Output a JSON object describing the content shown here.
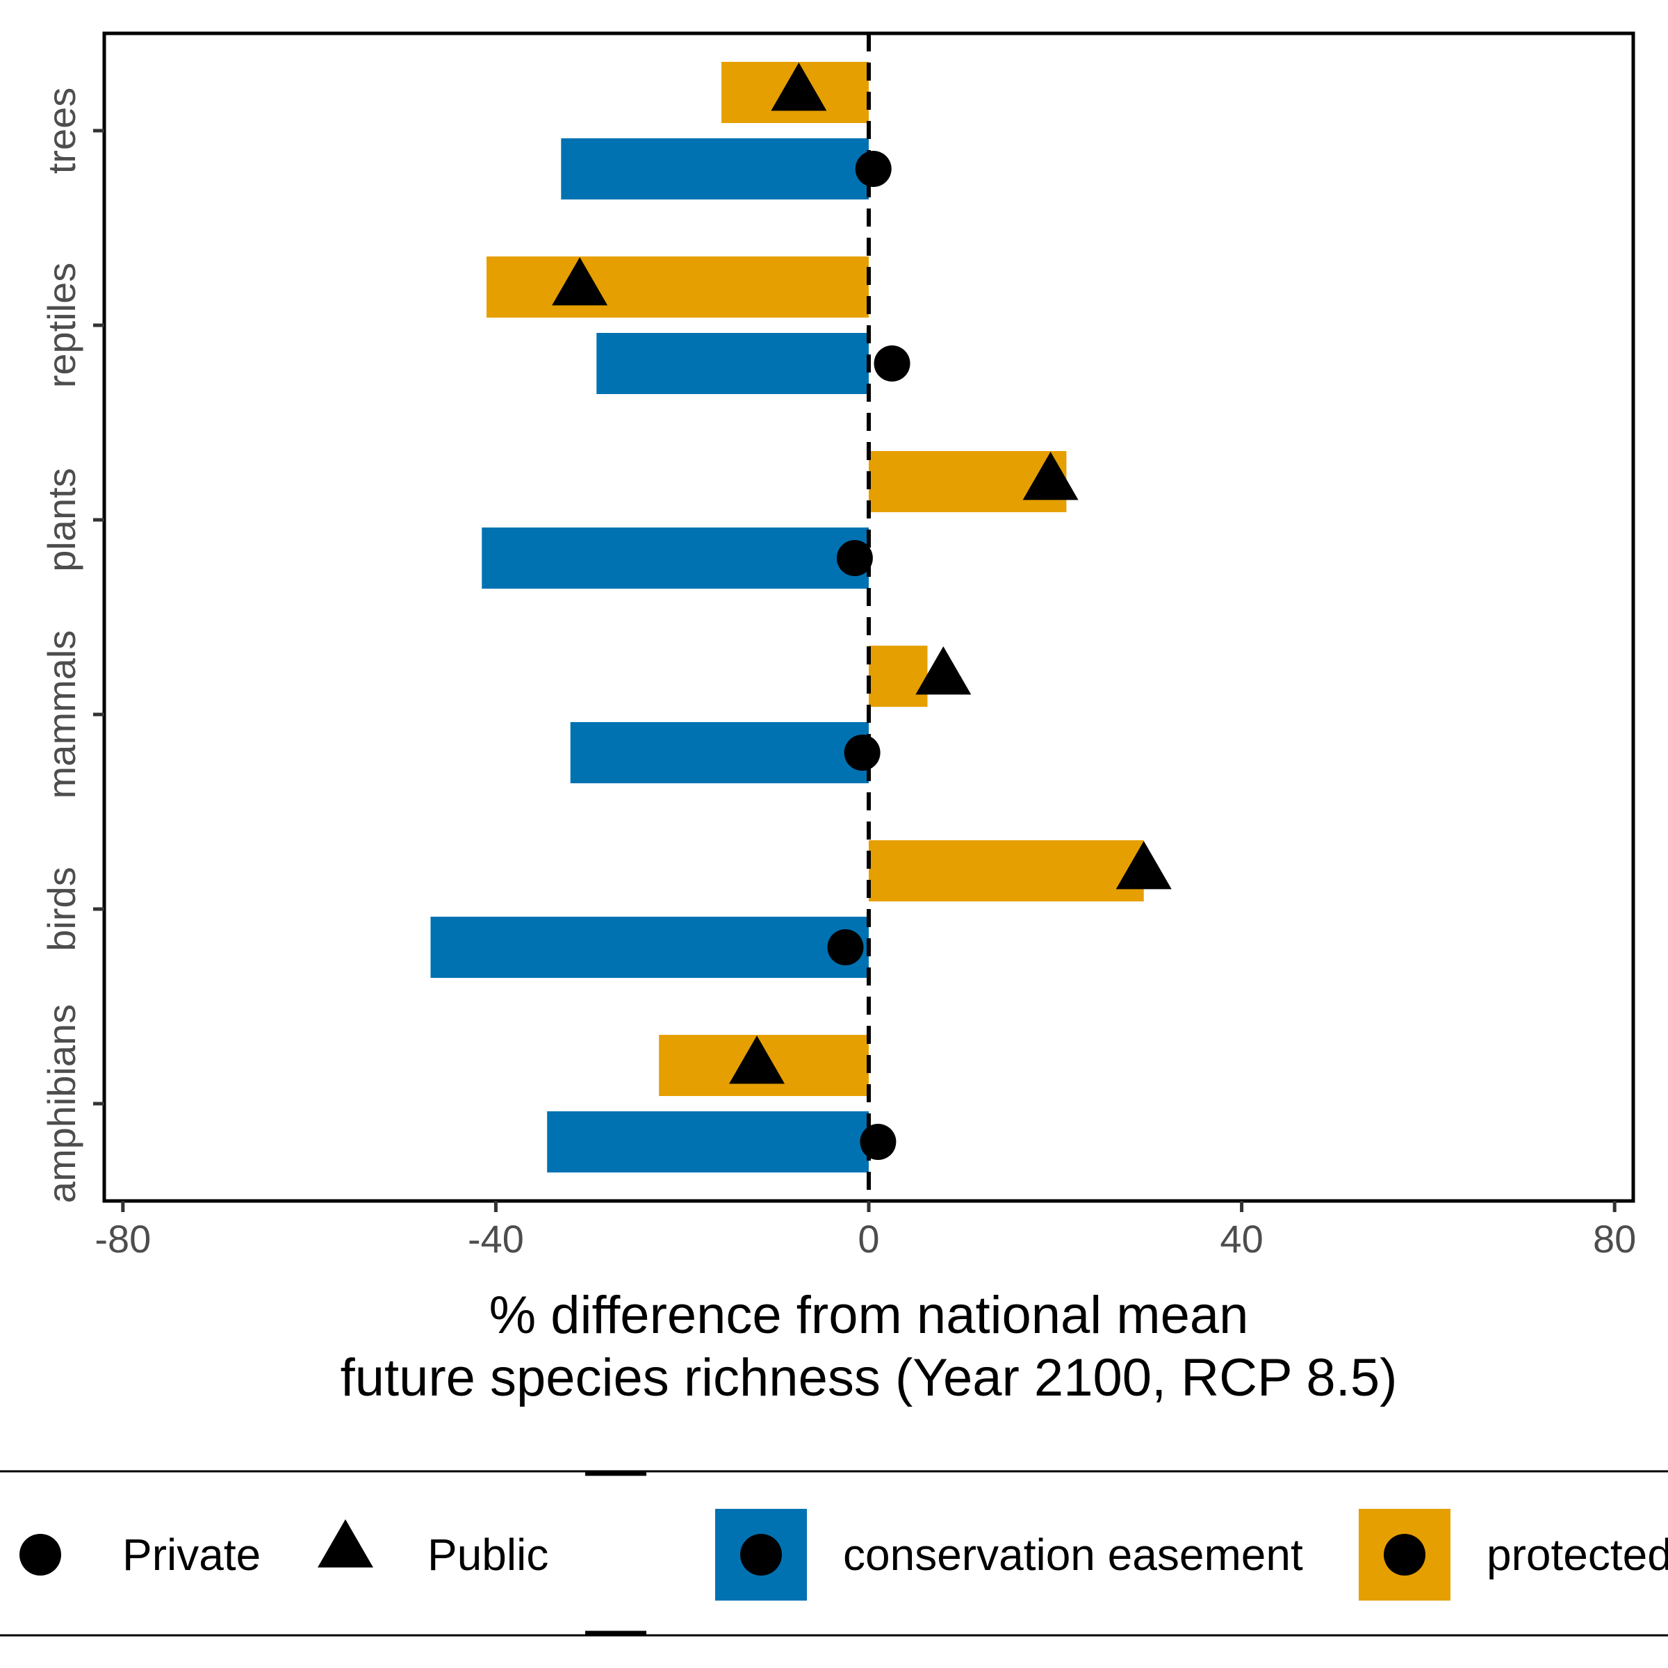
{
  "chart_data": {
    "type": "bar",
    "orientation": "horizontal",
    "categories": [
      "amphibians",
      "birds",
      "mammals",
      "plants",
      "reptiles",
      "trees"
    ],
    "series": [
      {
        "name": "conservation easement",
        "kind": "bar",
        "color": "#0072B2",
        "values": [
          -34.5,
          -47.0,
          -32.0,
          -41.5,
          -29.2,
          -33.0
        ]
      },
      {
        "name": "protected",
        "kind": "bar",
        "color": "#E69F00",
        "values": [
          -22.5,
          29.5,
          6.3,
          21.2,
          -41.0,
          -15.8
        ]
      },
      {
        "name": "Private",
        "kind": "point",
        "shape": "circle",
        "pairs_with": "conservation easement",
        "values": [
          1.0,
          -2.5,
          -0.7,
          -1.5,
          2.5,
          0.5
        ]
      },
      {
        "name": "Public",
        "kind": "point",
        "shape": "triangle",
        "pairs_with": "protected",
        "values": [
          -12.0,
          29.5,
          8.0,
          19.5,
          -31.0,
          -7.5
        ]
      }
    ],
    "xlabel": "% difference from national mean\nfuture species richness (Year 2100, RCP 8.5)",
    "xlabel_lines": [
      "% difference from national mean",
      "future species richness (Year 2100, RCP 8.5)"
    ],
    "ylabel": "",
    "xlim": [
      -82,
      82
    ],
    "xticks": [
      -80,
      -40,
      0,
      40,
      80
    ],
    "xtick_labels": [
      "-80",
      "-40",
      "0",
      "40",
      "80"
    ],
    "reference_line": {
      "x": 0,
      "style": "dashed",
      "color": "#000000"
    },
    "grid": false,
    "legend_position": "bottom",
    "legend": {
      "shape_entries": [
        {
          "label": "Private",
          "shape": "circle"
        },
        {
          "label": "Public",
          "shape": "triangle"
        }
      ],
      "fill_entries": [
        {
          "label": "conservation easement",
          "color": "#0072B2"
        },
        {
          "label": "protected",
          "color": "#E69F00"
        }
      ]
    }
  }
}
